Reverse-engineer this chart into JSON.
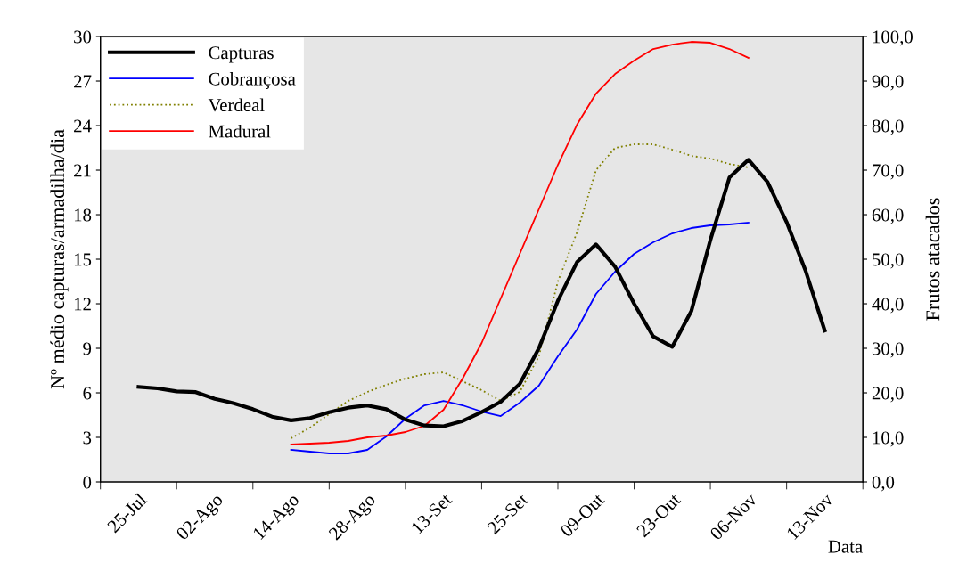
{
  "chart_data": {
    "type": "line",
    "xlabel": "Data",
    "ylabel": "Nº médio capturas/armadilha/dia",
    "y2label": "Frutos atacados",
    "categories": [
      "25-Jul",
      null,
      null,
      null,
      "02-Ago",
      null,
      null,
      null,
      "14-Ago",
      null,
      null,
      null,
      "28-Ago",
      null,
      null,
      null,
      "13-Set",
      null,
      null,
      null,
      "25-Set",
      null,
      null,
      null,
      "09-Out",
      null,
      null,
      null,
      "23-Out",
      null,
      null,
      null,
      "06-Nov",
      null,
      null,
      null,
      "13-Nov"
    ],
    "ylim": [
      0,
      30
    ],
    "yticks": [
      0,
      3,
      6,
      9,
      12,
      15,
      18,
      21,
      24,
      27,
      30
    ],
    "y2lim": [
      0,
      100
    ],
    "y2ticks": [
      {
        "value": 0,
        "label": "0,0"
      },
      {
        "value": 10,
        "label": "10,0"
      },
      {
        "value": 20,
        "label": "20,0"
      },
      {
        "value": 30,
        "label": "30,0"
      },
      {
        "value": 40,
        "label": "40,0"
      },
      {
        "value": 50,
        "label": "50,0"
      },
      {
        "value": 60,
        "label": "60,0"
      },
      {
        "value": 70,
        "label": "70,0"
      },
      {
        "value": 80,
        "label": "80,0"
      },
      {
        "value": 90,
        "label": "90,0"
      },
      {
        "value": 100,
        "label": "100,0"
      }
    ],
    "legend": "top left",
    "grid": false,
    "marker": "none",
    "series": [
      {
        "name": "Capturas",
        "color": "#000000",
        "line_style": "solid",
        "values": [
          6.4,
          6.3,
          6.1,
          6.05,
          5.6,
          5.3,
          4.9,
          4.4,
          4.15,
          4.3,
          4.7,
          5.0,
          5.15,
          4.9,
          4.2,
          3.8,
          3.75,
          4.1,
          4.7,
          5.4,
          6.6,
          9.0,
          12.2,
          14.8,
          16.0,
          14.5,
          12.0,
          9.8,
          9.1,
          11.5,
          16.3,
          20.5,
          21.7,
          20.2,
          17.5,
          14.2,
          10.2
        ]
      },
      {
        "name": "Cobrançosa",
        "color": "#0000ff",
        "axis": "y2",
        "line_style": "solid",
        "values": [
          null,
          null,
          null,
          null,
          null,
          null,
          null,
          null,
          7.2,
          6.8,
          6.4,
          6.4,
          7.2,
          10.2,
          14.2,
          17.2,
          18.2,
          17.2,
          15.8,
          14.8,
          17.8,
          21.6,
          28.2,
          34.2,
          42.2,
          47.2,
          51.2,
          53.8,
          55.8,
          57,
          57.6,
          57.8,
          58.2,
          null,
          null,
          null,
          null
        ]
      },
      {
        "name": "Verdeal",
        "color": "#808000",
        "axis": "y2",
        "line_style": "dotted",
        "values": [
          null,
          null,
          null,
          null,
          null,
          null,
          null,
          null,
          9.8,
          12.2,
          15.2,
          18.2,
          20.2,
          21.8,
          23.2,
          24.2,
          24.6,
          22.6,
          20.6,
          18.2,
          20.2,
          28.2,
          45,
          56,
          70,
          75,
          75.8,
          75.8,
          74.6,
          73.2,
          72.6,
          71.4,
          70.6,
          null,
          null,
          null,
          null
        ]
      },
      {
        "name": "Madural",
        "color": "#ff0000",
        "axis": "y2",
        "line_style": "solid",
        "values": [
          null,
          null,
          null,
          null,
          null,
          null,
          null,
          null,
          8.4,
          8.6,
          8.8,
          9.2,
          10.0,
          10.4,
          11.2,
          12.6,
          16.2,
          23.2,
          31.2,
          41.2,
          51.2,
          61.2,
          71.2,
          80.2,
          87.2,
          91.6,
          94.6,
          97.2,
          98.2,
          98.8,
          98.6,
          97.2,
          95.2,
          null,
          null,
          null,
          null
        ]
      }
    ]
  }
}
